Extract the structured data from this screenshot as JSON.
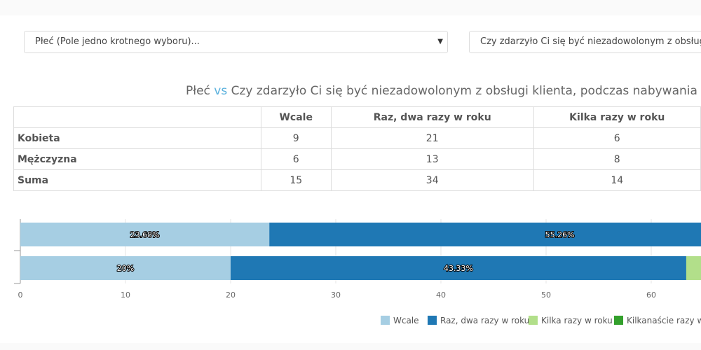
{
  "filters": {
    "row_select": "Płeć (Pole jedno krotnego wyboru)...",
    "col_select": "Czy zdarzyło Ci się być niezadowolonym z obsługi klienta, podczas nabywania produktów",
    "caret": "▼"
  },
  "title": {
    "left": "Płeć",
    "vs": "vs",
    "right": "Czy zdarzyło Ci się być niezadowolonym z obsługi klienta, podczas nabywania produktów"
  },
  "table": {
    "headers": [
      "",
      "Wcale",
      "Raz, dwa razy w roku",
      "Kilka razy w roku"
    ],
    "rows": [
      {
        "label": "Kobieta",
        "values": [
          "9",
          "21",
          "6"
        ]
      },
      {
        "label": "Mężczyzna",
        "values": [
          "6",
          "13",
          "8"
        ]
      },
      {
        "label": "Suma",
        "values": [
          "15",
          "34",
          "14"
        ]
      }
    ]
  },
  "chart_data": {
    "type": "bar",
    "orientation": "horizontal",
    "stacked": true,
    "x_ticks": [
      "0",
      "10",
      "20",
      "30",
      "40",
      "50",
      "60"
    ],
    "xlim": [
      0,
      65
    ],
    "rows": [
      {
        "segments": [
          {
            "series": "Wcale",
            "value": 23.68,
            "label": "23.68%"
          },
          {
            "series": "Raz, dwa razy w roku",
            "value": 55.26,
            "label": "55.26%"
          }
        ]
      },
      {
        "segments": [
          {
            "series": "Wcale",
            "value": 20,
            "label": "20%"
          },
          {
            "series": "Raz, dwa razy w roku",
            "value": 43.33,
            "label": "43.33%"
          },
          {
            "series": "Kilka razy w roku",
            "value": 26.67,
            "label": ""
          }
        ]
      }
    ],
    "series": [
      {
        "name": "Wcale",
        "color": "#a6cee3"
      },
      {
        "name": "Raz, dwa razy w roku",
        "color": "#1f78b4"
      },
      {
        "name": "Kilka razy w roku",
        "color": "#b2df8a"
      },
      {
        "name": "Kilkanaście razy w roku",
        "color": "#33a02c"
      }
    ],
    "legend_position": "bottom"
  }
}
